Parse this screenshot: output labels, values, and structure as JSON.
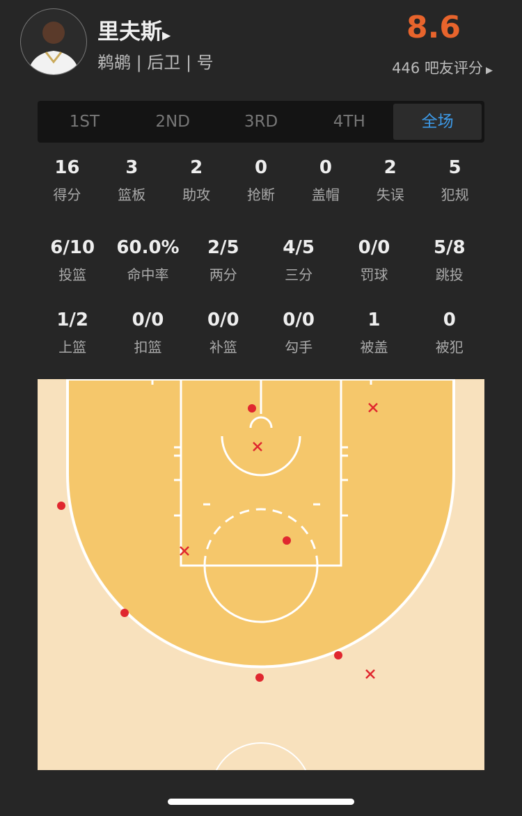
{
  "player": {
    "name": "里夫斯",
    "info": "鹈鹕 | 后卫 | 号",
    "rating": "8.6",
    "raters": "446 吧友评分"
  },
  "tabs": [
    "1ST",
    "2ND",
    "3RD",
    "4TH",
    "全场"
  ],
  "active_tab": "全场",
  "stats_row1": [
    {
      "v": "16",
      "l": "得分"
    },
    {
      "v": "3",
      "l": "篮板"
    },
    {
      "v": "2",
      "l": "助攻"
    },
    {
      "v": "0",
      "l": "抢断"
    },
    {
      "v": "0",
      "l": "盖帽"
    },
    {
      "v": "2",
      "l": "失误"
    },
    {
      "v": "5",
      "l": "犯规"
    }
  ],
  "stats_row2": [
    {
      "v": "6/10",
      "l": "投篮"
    },
    {
      "v": "60.0%",
      "l": "命中率"
    },
    {
      "v": "2/5",
      "l": "两分"
    },
    {
      "v": "4/5",
      "l": "三分"
    },
    {
      "v": "0/0",
      "l": "罚球"
    },
    {
      "v": "5/8",
      "l": "跳投"
    }
  ],
  "stats_row3": [
    {
      "v": "1/2",
      "l": "上篮"
    },
    {
      "v": "0/0",
      "l": "扣篮"
    },
    {
      "v": "0/0",
      "l": "补篮"
    },
    {
      "v": "0/0",
      "l": "勾手"
    },
    {
      "v": "1",
      "l": "被盖"
    },
    {
      "v": "0",
      "l": "被犯"
    }
  ],
  "shot_chart": {
    "made_count": 6,
    "missed_count": 4,
    "colors": {
      "made": "#e0272f",
      "missed": "#e0272f",
      "paint_area": "#f5c76b",
      "court": "#f8e1bd",
      "accent": "#3d9be9",
      "rating": "#e8642c"
    }
  }
}
